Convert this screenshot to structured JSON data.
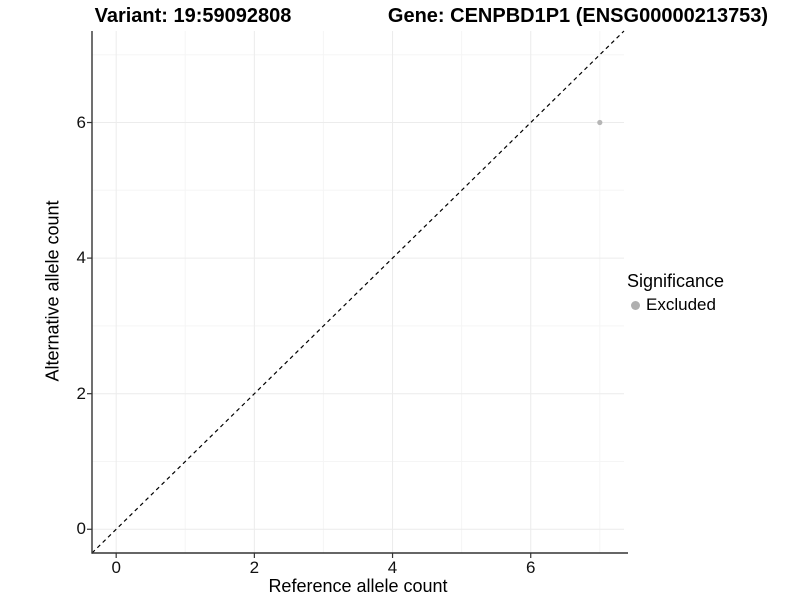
{
  "chart_data": {
    "type": "scatter",
    "title_left": "Variant: 19:59092808",
    "title_right": "Gene: CENPBD1P1 (ENSG00000213753)",
    "xlabel": "Reference allele count",
    "ylabel": "Alternative allele count",
    "xlim": [
      -0.35,
      7.35
    ],
    "ylim": [
      -0.35,
      7.35
    ],
    "x_ticks": [
      0,
      2,
      4,
      6
    ],
    "y_ticks": [
      0,
      2,
      4,
      6
    ],
    "x_minor_gridlines": [
      1,
      3,
      5,
      7
    ],
    "y_minor_gridlines": [
      1,
      3,
      5,
      7
    ],
    "grid": true,
    "points": [
      {
        "x": 7,
        "y": 6,
        "series": "Excluded"
      }
    ],
    "identity_line": {
      "equation": "y = x",
      "style": "dashed",
      "color": "#000000"
    },
    "legend": {
      "title": "Significance",
      "position": "right",
      "items": [
        {
          "label": "Excluded",
          "color": "#b0b0b0"
        }
      ]
    },
    "colors": {
      "point": "#b6b6b6",
      "grid_major": "#ececec",
      "grid_minor": "#f5f5f5",
      "axis_line": "#333333",
      "background": "#ffffff",
      "text": "#000000"
    }
  }
}
